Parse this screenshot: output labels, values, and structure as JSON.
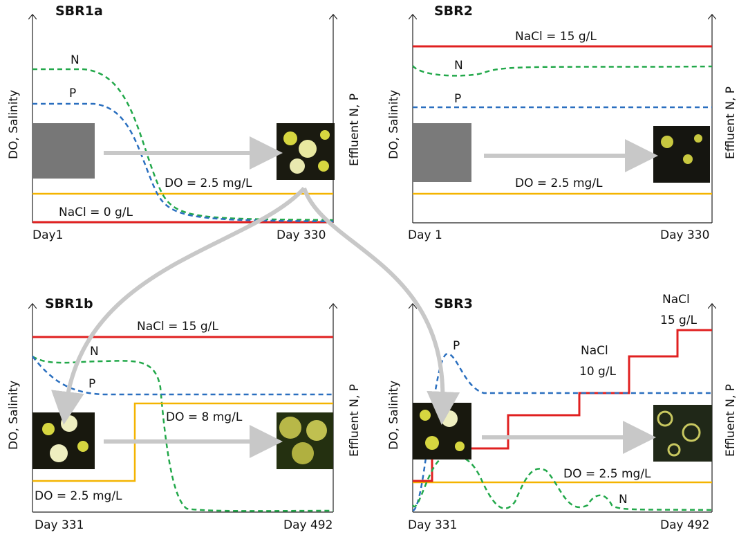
{
  "panels": [
    {
      "title": "SBR1a",
      "x_start": "Day1",
      "x_end": "Day 330",
      "y_left": "DO, Salinity",
      "y_right": "Effluent  N, P",
      "labels": [
        "N",
        "P",
        "DO = 2.5 mg/L",
        "NaCl = 0 g/L"
      ]
    },
    {
      "title": "SBR2",
      "x_start": "Day 1",
      "x_end": "Day 330",
      "y_left": "DO, Salinity",
      "y_right": "Effluent  N, P",
      "labels": [
        "NaCl = 15 g/L",
        "N",
        "P",
        "DO = 2.5 mg/L"
      ]
    },
    {
      "title": "SBR1b",
      "x_start": "Day 331",
      "x_end": "Day 492",
      "y_left": "DO, Salinity",
      "y_right": "Effluent  N, P",
      "labels": [
        "NaCl = 15 g/L",
        "N",
        "P",
        "DO = 8 mg/L",
        "DO = 2.5 mg/L"
      ]
    },
    {
      "title": "SBR3",
      "x_start": "Day 331",
      "x_end": "Day 492",
      "y_left": "DO, Salinity",
      "y_right": "Effluent  N, P",
      "labels": [
        "NaCl",
        "15 g/L",
        "P",
        "NaCl",
        "10 g/L",
        "DO = 2.5 mg/L",
        "N"
      ]
    }
  ]
}
